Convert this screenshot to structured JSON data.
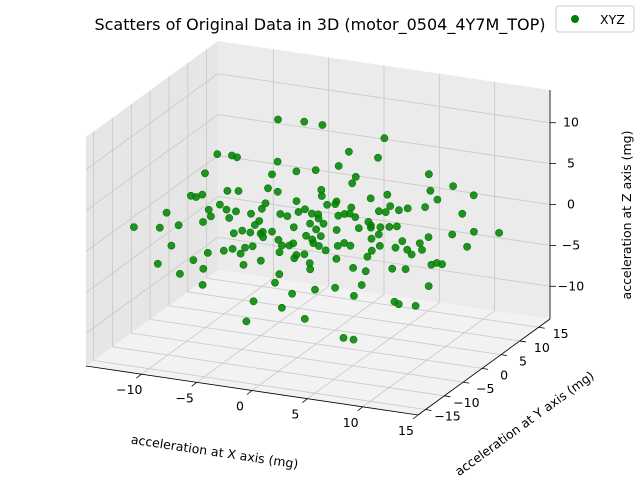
{
  "chart_data": {
    "type": "scatter",
    "title": "Scatters of Original Data in 3D (motor_0504_4Y7M_TOP)",
    "xlabel": "acceleration at X axis (mg)",
    "ylabel": "acceleration at Y axis (mg)",
    "zlabel": "acceleration at Z axis (mg)",
    "xlim": [
      -15,
      15
    ],
    "ylim": [
      -17,
      18
    ],
    "zlim": [
      -14,
      14
    ],
    "xticks": [
      -10,
      -5,
      0,
      5,
      10,
      15
    ],
    "yticks": [
      -15,
      -10,
      -5,
      0,
      5,
      10,
      15
    ],
    "zticks": [
      -10,
      -5,
      0,
      5,
      10
    ],
    "grid": true,
    "legend_position": "top-right",
    "series": [
      {
        "name": "XYZ",
        "color": "#008000",
        "marker": "circle",
        "points": [
          [
            0.0,
            0.0,
            0.0
          ],
          [
            -2.1,
            1.5,
            1.2
          ],
          [
            2.4,
            -1.3,
            -1.1
          ],
          [
            1.1,
            2.2,
            -0.6
          ],
          [
            -1.3,
            -2.1,
            0.7
          ],
          [
            3.2,
            1.0,
            1.8
          ],
          [
            -3.1,
            -0.9,
            -1.6
          ],
          [
            0.6,
            3.3,
            2.1
          ],
          [
            -0.7,
            -3.2,
            -2.2
          ],
          [
            4.1,
            2.5,
            0.2
          ],
          [
            -4.0,
            -2.4,
            -0.3
          ],
          [
            2.0,
            -3.9,
            2.4
          ],
          [
            -2.2,
            3.8,
            -2.5
          ],
          [
            5.2,
            -0.5,
            -1.4
          ],
          [
            -5.1,
            0.6,
            1.3
          ],
          [
            0.9,
            4.8,
            -3.1
          ],
          [
            -1.0,
            -4.7,
            3.0
          ],
          [
            3.6,
            3.9,
            3.2
          ],
          [
            -3.7,
            -3.8,
            -3.3
          ],
          [
            6.0,
            1.8,
            0.9
          ],
          [
            -6.1,
            -1.7,
            -0.8
          ],
          [
            1.4,
            -5.8,
            -1.9
          ],
          [
            -1.5,
            5.9,
            1.8
          ],
          [
            4.6,
            -4.4,
            0.4
          ],
          [
            -4.7,
            4.3,
            -0.5
          ],
          [
            0.2,
            0.8,
            4.6
          ],
          [
            -0.3,
            -0.7,
            -4.7
          ],
          [
            6.8,
            -2.9,
            2.6
          ],
          [
            -6.9,
            2.8,
            -2.7
          ],
          [
            2.7,
            6.6,
            -1.2
          ],
          [
            -2.8,
            -6.5,
            1.1
          ],
          [
            7.4,
            3.6,
            -2.8
          ],
          [
            -7.5,
            -3.5,
            2.7
          ],
          [
            1.9,
            -7.2,
            3.5
          ],
          [
            -2.0,
            7.1,
            -3.6
          ],
          [
            5.5,
            5.8,
            1.5
          ],
          [
            -5.6,
            -5.7,
            -1.6
          ],
          [
            8.2,
            -1.2,
            0.6
          ],
          [
            -8.3,
            1.3,
            -0.7
          ],
          [
            0.4,
            8.4,
            2.9
          ],
          [
            -0.5,
            -8.3,
            -2.8
          ],
          [
            3.9,
            1.7,
            -4.9
          ],
          [
            -3.8,
            -1.6,
            4.8
          ],
          [
            6.3,
            -6.4,
            -3.4
          ],
          [
            -6.2,
            6.5,
            3.3
          ],
          [
            9.1,
            2.2,
            3.8
          ],
          [
            -9.0,
            -2.3,
            -3.9
          ],
          [
            2.5,
            9.3,
            -0.4
          ],
          [
            -2.6,
            -9.2,
            0.5
          ],
          [
            7.8,
            6.9,
            -1.7
          ],
          [
            -7.9,
            -6.8,
            1.6
          ],
          [
            9.8,
            -4.6,
            1.0
          ],
          [
            -9.7,
            4.7,
            -1.1
          ],
          [
            1.2,
            -9.9,
            -4.3
          ],
          [
            -1.3,
            9.8,
            4.2
          ],
          [
            10.6,
            0.9,
            -2.3
          ],
          [
            -10.5,
            -1.0,
            2.2
          ],
          [
            4.8,
            10.2,
            0.1
          ],
          [
            -4.9,
            -10.1,
            -0.2
          ],
          [
            11.4,
            5.3,
            2.4
          ],
          [
            -11.3,
            -5.2,
            -2.5
          ],
          [
            8.7,
            -8.9,
            4.1
          ],
          [
            -8.6,
            9.0,
            -4.2
          ],
          [
            0.7,
            11.8,
            -2.9
          ],
          [
            -0.8,
            -11.7,
            2.8
          ],
          [
            12.3,
            -2.7,
            -0.9
          ],
          [
            -12.2,
            2.6,
            0.8
          ],
          [
            5.9,
            12.6,
            3.7
          ],
          [
            -6.0,
            -12.5,
            -3.8
          ],
          [
            10.1,
            10.4,
            -3.6
          ],
          [
            -10.0,
            -10.3,
            3.5
          ],
          [
            13.2,
            3.1,
            1.3
          ],
          [
            -13.1,
            -3.0,
            -1.4
          ],
          [
            3.3,
            -12.8,
            1.9
          ],
          [
            -3.4,
            12.9,
            -2.0
          ],
          [
            12.8,
            -7.7,
            -1.8
          ],
          [
            -12.7,
            7.8,
            1.7
          ],
          [
            2.8,
            2.3,
            6.2
          ],
          [
            -2.9,
            -2.4,
            -6.3
          ],
          [
            6.5,
            -0.2,
            5.6
          ],
          [
            -6.6,
            0.1,
            -5.7
          ],
          [
            1.6,
            5.1,
            -6.1
          ],
          [
            -1.7,
            -5.2,
            6.0
          ],
          [
            4.3,
            -2.6,
            -6.4
          ],
          [
            -4.4,
            2.7,
            6.5
          ],
          [
            0.1,
            -0.4,
            7.4
          ],
          [
            -0.2,
            0.3,
            -7.5
          ],
          [
            8.9,
            4.2,
            5.1
          ],
          [
            -8.8,
            -4.1,
            -5.2
          ],
          [
            3.0,
            7.6,
            6.8
          ],
          [
            -3.1,
            -7.5,
            -6.9
          ],
          [
            5.7,
            -7.4,
            6.3
          ],
          [
            -5.8,
            7.3,
            -6.4
          ],
          [
            10.9,
            -5.6,
            -5.3
          ],
          [
            -10.8,
            5.5,
            5.2
          ],
          [
            1.8,
            3.4,
            8.7
          ],
          [
            -1.9,
            -3.5,
            -8.8
          ],
          [
            7.1,
            1.1,
            -8.1
          ],
          [
            -7.2,
            -1.2,
            8.0
          ],
          [
            0.3,
            -6.1,
            9.2
          ],
          [
            -0.4,
            6.2,
            -9.3
          ],
          [
            4.5,
            4.9,
            10.4
          ],
          [
            -4.6,
            -5.0,
            -10.5
          ],
          [
            0.5,
            0.2,
            12.8
          ],
          [
            -1.4,
            1.1,
            -11.6
          ],
          [
            3.8,
            -3.9,
            -11.2
          ],
          [
            -2.3,
            3.6,
            11.5
          ],
          [
            13.6,
            8.6,
            -0.6
          ],
          [
            -13.5,
            -8.7,
            0.5
          ],
          [
            9.5,
            13.9,
            1.4
          ],
          [
            -9.6,
            -13.8,
            -1.5
          ],
          [
            14.1,
            -10.8,
            2.1
          ],
          [
            -14.0,
            10.9,
            -2.2
          ],
          [
            11.9,
            1.4,
            7.2
          ],
          [
            -11.8,
            -1.5,
            -7.3
          ],
          [
            2.2,
            14.6,
            -6.7
          ],
          [
            -2.3,
            -14.5,
            6.6
          ],
          [
            7.6,
            -12.4,
            -7.8
          ],
          [
            -7.7,
            12.5,
            7.7
          ],
          [
            5.0,
            6.1,
            -9.9
          ],
          [
            -5.1,
            -6.0,
            9.8
          ],
          [
            0.8,
            -1.8,
            2.6
          ],
          [
            -0.9,
            1.9,
            -2.5
          ],
          [
            1.7,
            0.4,
            -3.4
          ],
          [
            -1.6,
            -0.5,
            3.3
          ],
          [
            2.9,
            2.8,
            -0.2
          ],
          [
            -3.0,
            -2.9,
            0.1
          ],
          [
            0.5,
            -2.5,
            -0.3
          ],
          [
            -0.6,
            2.4,
            0.4
          ],
          [
            3.5,
            -1.4,
            3.1
          ],
          [
            -3.6,
            1.5,
            -3.2
          ],
          [
            1.3,
            3.7,
            0.9
          ],
          [
            -1.2,
            -3.6,
            -1.0
          ],
          [
            4.4,
            0.7,
            -2.7
          ],
          [
            -4.3,
            -0.8,
            2.6
          ],
          [
            2.3,
            -4.2,
            -0.7
          ],
          [
            -2.4,
            4.1,
            0.6
          ],
          [
            5.3,
            2.9,
            2.2
          ],
          [
            -5.4,
            -3.0,
            -2.3
          ],
          [
            0.0,
            5.4,
            1.6
          ],
          [
            -0.1,
            -5.5,
            -1.7
          ],
          [
            6.4,
            -1.9,
            -0.1
          ],
          [
            -6.5,
            1.8,
            0.0
          ],
          [
            3.1,
            5.6,
            -2.4
          ],
          [
            -3.2,
            -5.7,
            2.3
          ],
          [
            7.2,
            0.3,
            1.7
          ],
          [
            -7.3,
            -0.4,
            -1.8
          ],
          [
            2.6,
            -6.9,
            0.8
          ],
          [
            -2.7,
            6.8,
            -0.9
          ],
          [
            8.0,
            -3.3,
            -2.1
          ],
          [
            -8.1,
            3.2,
            2.0
          ],
          [
            4.0,
            7.9,
            1.0
          ],
          [
            -4.1,
            -8.0,
            -1.1
          ],
          [
            9.4,
            0.5,
            -0.8
          ],
          [
            -9.5,
            -0.6,
            0.7
          ],
          [
            1.0,
            -9.0,
            1.5
          ],
          [
            -1.1,
            9.1,
            -1.6
          ],
          [
            8.4,
            7.5,
            2.8
          ],
          [
            -8.5,
            -7.6,
            -2.9
          ],
          [
            10.4,
            -6.8,
            -0.5
          ],
          [
            -10.3,
            6.7,
            0.4
          ],
          [
            6.1,
            9.6,
            -3.7
          ],
          [
            -6.2,
            -9.7,
            3.6
          ],
          [
            11.0,
            3.8,
            0.3
          ],
          [
            -11.1,
            -3.9,
            -0.4
          ]
        ]
      }
    ]
  }
}
